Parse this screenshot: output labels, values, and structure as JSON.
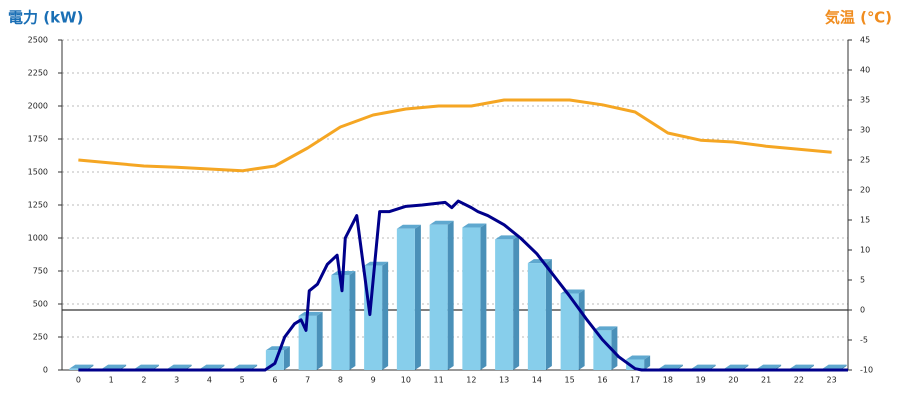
{
  "chart_data": {
    "type": "combo",
    "y_label": "電力 (kW)",
    "y2_label": "気温 (℃)",
    "categories": [
      "0",
      "1",
      "2",
      "3",
      "4",
      "5",
      "6",
      "7",
      "8",
      "9",
      "10",
      "11",
      "12",
      "13",
      "14",
      "15",
      "16",
      "17",
      "18",
      "19",
      "20",
      "21",
      "22",
      "23"
    ],
    "ylim": [
      0,
      2500
    ],
    "yticks": [
      0,
      250,
      500,
      750,
      1000,
      1250,
      1500,
      1750,
      2000,
      2250,
      2500
    ],
    "y2lim": [
      -10,
      45
    ],
    "y2ticks": [
      -10,
      -5,
      0,
      5,
      10,
      15,
      20,
      25,
      30,
      35,
      40,
      45
    ],
    "grid": true,
    "series": [
      {
        "type": "bar",
        "color": "#87ceeb",
        "values": [
          10,
          10,
          10,
          10,
          10,
          10,
          150,
          410,
          720,
          790,
          1070,
          1100,
          1080,
          990,
          810,
          580,
          300,
          80,
          10,
          10,
          10,
          10,
          10,
          10
        ]
      },
      {
        "type": "line",
        "color": "#00008b",
        "x": [
          0,
          5.7,
          6,
          6.3,
          6.6,
          6.8,
          6.95,
          7.05,
          7.3,
          7.6,
          7.9,
          8.05,
          8.15,
          8.5,
          8.9,
          9.2,
          9.5,
          10,
          10.5,
          11.2,
          11.4,
          11.6,
          12,
          12.2,
          12.5,
          13,
          13.5,
          14,
          14.5,
          15,
          15.5,
          16,
          16.5,
          17,
          17.2,
          23.5
        ],
        "values": [
          0,
          0,
          50,
          250,
          350,
          380,
          300,
          600,
          650,
          800,
          870,
          600,
          1000,
          1170,
          420,
          1200,
          1200,
          1240,
          1250,
          1270,
          1230,
          1280,
          1230,
          1200,
          1170,
          1100,
          1000,
          880,
          720,
          560,
          390,
          230,
          100,
          10,
          0,
          0
        ]
      },
      {
        "type": "line",
        "axis": "y2",
        "color": "#f5a623",
        "values": [
          25,
          24.5,
          24,
          23.8,
          23.5,
          23.2,
          24,
          27,
          30.5,
          32.5,
          33.5,
          34,
          34,
          35,
          35,
          35,
          34.2,
          33,
          29.5,
          28.3,
          28,
          27.3,
          26.8,
          26.3
        ]
      }
    ]
  }
}
